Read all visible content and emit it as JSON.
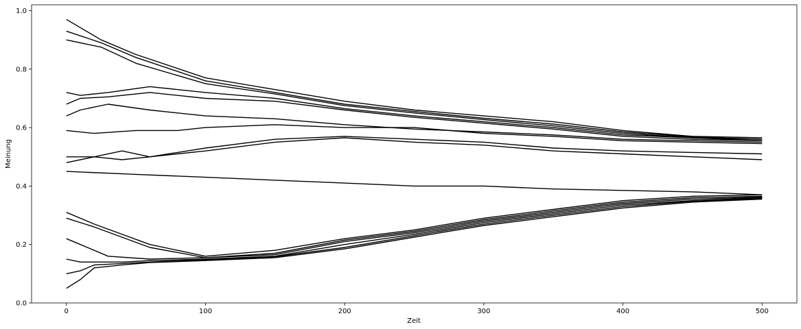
{
  "chart_data": {
    "type": "line",
    "title": "",
    "xlabel": "Zeit",
    "ylabel": "Meinung",
    "xlim": [
      -25,
      525
    ],
    "ylim": [
      0.0,
      1.02
    ],
    "xticks": [
      0,
      100,
      200,
      300,
      400,
      500
    ],
    "xtick_labels": [
      "0",
      "100",
      "200",
      "300",
      "400",
      "500"
    ],
    "yticks": [
      0.0,
      0.2,
      0.4,
      0.6,
      0.8,
      1.0
    ],
    "ytick_labels": [
      "0.0",
      "0.2",
      "0.4",
      "0.6",
      "0.8",
      "1.0"
    ],
    "grid": false,
    "line_color": "#000000",
    "series": [
      {
        "x": [
          0,
          25,
          50,
          100,
          150,
          200,
          250,
          300,
          350,
          400,
          450,
          500
        ],
        "values": [
          0.97,
          0.9,
          0.85,
          0.77,
          0.73,
          0.69,
          0.66,
          0.64,
          0.62,
          0.59,
          0.57,
          0.565
        ]
      },
      {
        "x": [
          0,
          25,
          50,
          100,
          150,
          200,
          250,
          300,
          350,
          400,
          450,
          500
        ],
        "values": [
          0.93,
          0.89,
          0.84,
          0.76,
          0.72,
          0.68,
          0.655,
          0.632,
          0.612,
          0.585,
          0.568,
          0.56
        ]
      },
      {
        "x": [
          0,
          25,
          50,
          100,
          150,
          200,
          250,
          300,
          350,
          400,
          450,
          500
        ],
        "values": [
          0.9,
          0.875,
          0.82,
          0.75,
          0.715,
          0.675,
          0.65,
          0.627,
          0.606,
          0.58,
          0.565,
          0.555
        ]
      },
      {
        "x": [
          0,
          10,
          30,
          60,
          100,
          150,
          200,
          250,
          300,
          350,
          400,
          450,
          500
        ],
        "values": [
          0.72,
          0.71,
          0.72,
          0.74,
          0.72,
          0.7,
          0.665,
          0.64,
          0.62,
          0.6,
          0.575,
          0.565,
          0.56
        ]
      },
      {
        "x": [
          0,
          10,
          30,
          60,
          100,
          150,
          200,
          250,
          300,
          350,
          400,
          450,
          500
        ],
        "values": [
          0.68,
          0.7,
          0.705,
          0.72,
          0.7,
          0.69,
          0.66,
          0.635,
          0.615,
          0.595,
          0.57,
          0.56,
          0.555
        ]
      },
      {
        "x": [
          0,
          10,
          30,
          60,
          100,
          150,
          200,
          250,
          300,
          350,
          400,
          450,
          500
        ],
        "values": [
          0.64,
          0.66,
          0.68,
          0.66,
          0.64,
          0.63,
          0.61,
          0.595,
          0.585,
          0.575,
          0.56,
          0.555,
          0.55
        ]
      },
      {
        "x": [
          0,
          20,
          50,
          80,
          100,
          150,
          200,
          250,
          300,
          350,
          400,
          450,
          500
        ],
        "values": [
          0.59,
          0.58,
          0.59,
          0.59,
          0.6,
          0.61,
          0.6,
          0.6,
          0.58,
          0.57,
          0.555,
          0.55,
          0.545
        ]
      },
      {
        "x": [
          0,
          20,
          40,
          60,
          100,
          150,
          200,
          250,
          300,
          350,
          400,
          450,
          500
        ],
        "values": [
          0.5,
          0.5,
          0.52,
          0.5,
          0.53,
          0.56,
          0.57,
          0.56,
          0.55,
          0.53,
          0.52,
          0.515,
          0.51
        ]
      },
      {
        "x": [
          0,
          20,
          40,
          60,
          100,
          150,
          200,
          250,
          300,
          350,
          400,
          450,
          500
        ],
        "values": [
          0.48,
          0.5,
          0.49,
          0.5,
          0.52,
          0.55,
          0.565,
          0.55,
          0.54,
          0.52,
          0.51,
          0.5,
          0.49
        ]
      },
      {
        "x": [
          0,
          50,
          100,
          150,
          200,
          250,
          300,
          350,
          400,
          450,
          500
        ],
        "values": [
          0.45,
          0.44,
          0.43,
          0.42,
          0.41,
          0.4,
          0.4,
          0.39,
          0.385,
          0.38,
          0.37
        ]
      },
      {
        "x": [
          0,
          20,
          60,
          100,
          150,
          200,
          250,
          300,
          350,
          400,
          450,
          500
        ],
        "values": [
          0.31,
          0.27,
          0.2,
          0.16,
          0.18,
          0.22,
          0.25,
          0.29,
          0.32,
          0.35,
          0.365,
          0.37
        ]
      },
      {
        "x": [
          0,
          20,
          60,
          100,
          150,
          200,
          250,
          300,
          350,
          400,
          450,
          500
        ],
        "values": [
          0.29,
          0.26,
          0.19,
          0.155,
          0.17,
          0.215,
          0.245,
          0.285,
          0.315,
          0.345,
          0.36,
          0.365
        ]
      },
      {
        "x": [
          0,
          10,
          30,
          60,
          100,
          150,
          200,
          250,
          300,
          350,
          400,
          450,
          500
        ],
        "values": [
          0.22,
          0.2,
          0.16,
          0.15,
          0.155,
          0.165,
          0.21,
          0.24,
          0.28,
          0.31,
          0.34,
          0.355,
          0.362
        ]
      },
      {
        "x": [
          0,
          10,
          20,
          40,
          60,
          100,
          150,
          200,
          250,
          300,
          350,
          400,
          450,
          500
        ],
        "values": [
          0.15,
          0.14,
          0.14,
          0.14,
          0.145,
          0.15,
          0.16,
          0.2,
          0.235,
          0.275,
          0.305,
          0.335,
          0.35,
          0.36
        ]
      },
      {
        "x": [
          0,
          10,
          20,
          40,
          60,
          100,
          150,
          200,
          250,
          300,
          350,
          400,
          450,
          500
        ],
        "values": [
          0.1,
          0.11,
          0.13,
          0.135,
          0.14,
          0.148,
          0.158,
          0.19,
          0.23,
          0.27,
          0.3,
          0.33,
          0.348,
          0.358
        ]
      },
      {
        "x": [
          0,
          10,
          20,
          40,
          60,
          100,
          150,
          200,
          250,
          300,
          350,
          400,
          450,
          500
        ],
        "values": [
          0.05,
          0.08,
          0.12,
          0.13,
          0.138,
          0.145,
          0.155,
          0.185,
          0.225,
          0.265,
          0.295,
          0.325,
          0.345,
          0.355
        ]
      }
    ]
  }
}
